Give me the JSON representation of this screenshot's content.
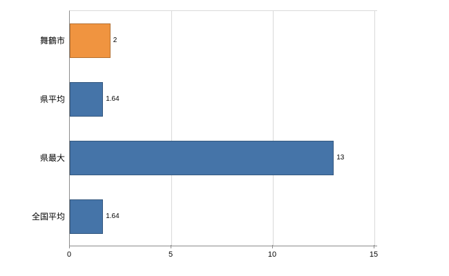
{
  "chart_data": {
    "type": "bar",
    "orientation": "horizontal",
    "title": "",
    "xlabel": "",
    "ylabel": "",
    "categories": [
      "舞鶴市",
      "県平均",
      "県最大",
      "全国平均"
    ],
    "values": [
      2,
      1.64,
      13,
      1.64
    ],
    "value_labels": [
      "2",
      "1.64",
      "13",
      "1.64"
    ],
    "bar_colors": [
      "#f09440",
      "#4574a8",
      "#4574a8",
      "#4574a8"
    ],
    "xlim": [
      0,
      15
    ],
    "x_ticks": [
      0,
      5,
      10,
      15
    ],
    "x_tick_labels": [
      "0",
      "5",
      "10",
      "15"
    ],
    "grid": true,
    "legend": "none"
  },
  "colors": {
    "highlight_bar": "#f09440",
    "default_bar": "#4574a8",
    "grid": "#d9d9d9",
    "axis": "#8a8a8a",
    "text": "#000000",
    "background": "#ffffff"
  }
}
